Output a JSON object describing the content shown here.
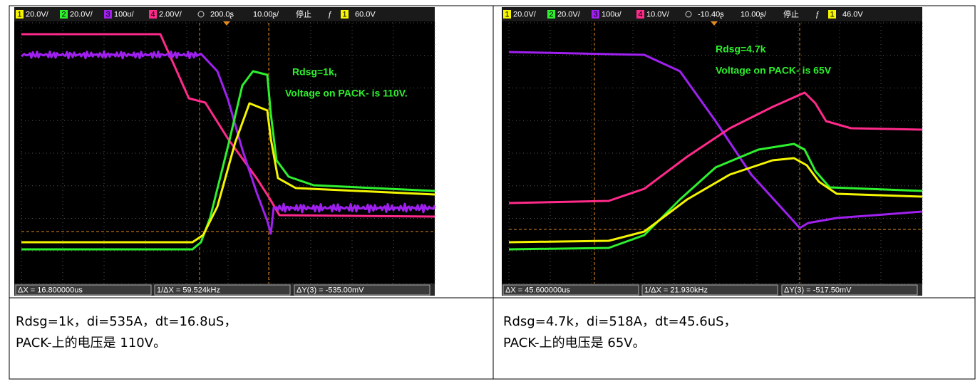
{
  "table": {
    "rows": [
      [
        {
          "channels": [
            {
              "num": "1",
              "scale": "20.0V/"
            },
            {
              "num": "2",
              "scale": "20.0V/"
            },
            {
              "num": "3",
              "scale": "100ʊ/"
            },
            {
              "num": "4",
              "scale": "2.00V/"
            }
          ],
          "time_position": "200.0ʂ",
          "time_scale": "10.00ʂ/",
          "run_state": "停止",
          "trigger_slope": "ƒ",
          "trigger_channel": "1",
          "trigger_level": "60.0V",
          "annotations": [
            "Rdsg=1k,",
            "Voltage on PACK- is 110V."
          ],
          "measurements": [
            "ΔX = 16.800000us",
            "1/ΔX = 59.524kHz",
            "ΔY(3) = -535.00mV"
          ]
        },
        {
          "channels": [
            {
              "num": "1",
              "scale": "20.0V/"
            },
            {
              "num": "2",
              "scale": "20.0V/"
            },
            {
              "num": "3",
              "scale": "100ʊ/"
            },
            {
              "num": "4",
              "scale": "10.0V/"
            }
          ],
          "time_position": "-10.40ʂ",
          "time_scale": "10.00ʂ/",
          "run_state": "停止",
          "trigger_slope": "ƒ",
          "trigger_channel": "1",
          "trigger_level": "46.0V",
          "annotations": [
            "Rdsg=4.7k",
            "Voltage on PACK- is 65V"
          ],
          "measurements": [
            "ΔX = 45.600000us",
            "1/ΔX = 21.930kHz",
            "ΔY(3) = -517.50mV"
          ]
        }
      ],
      [
        [
          "Rdsg=1k，di=535A，dt=16.8uS，",
          "PACK-上的电压是 110V。"
        ],
        [
          "Rdsg=4.7k，di=518A，dt=45.6uS，",
          "PACK-上的电压是 65V。"
        ]
      ]
    ]
  }
}
